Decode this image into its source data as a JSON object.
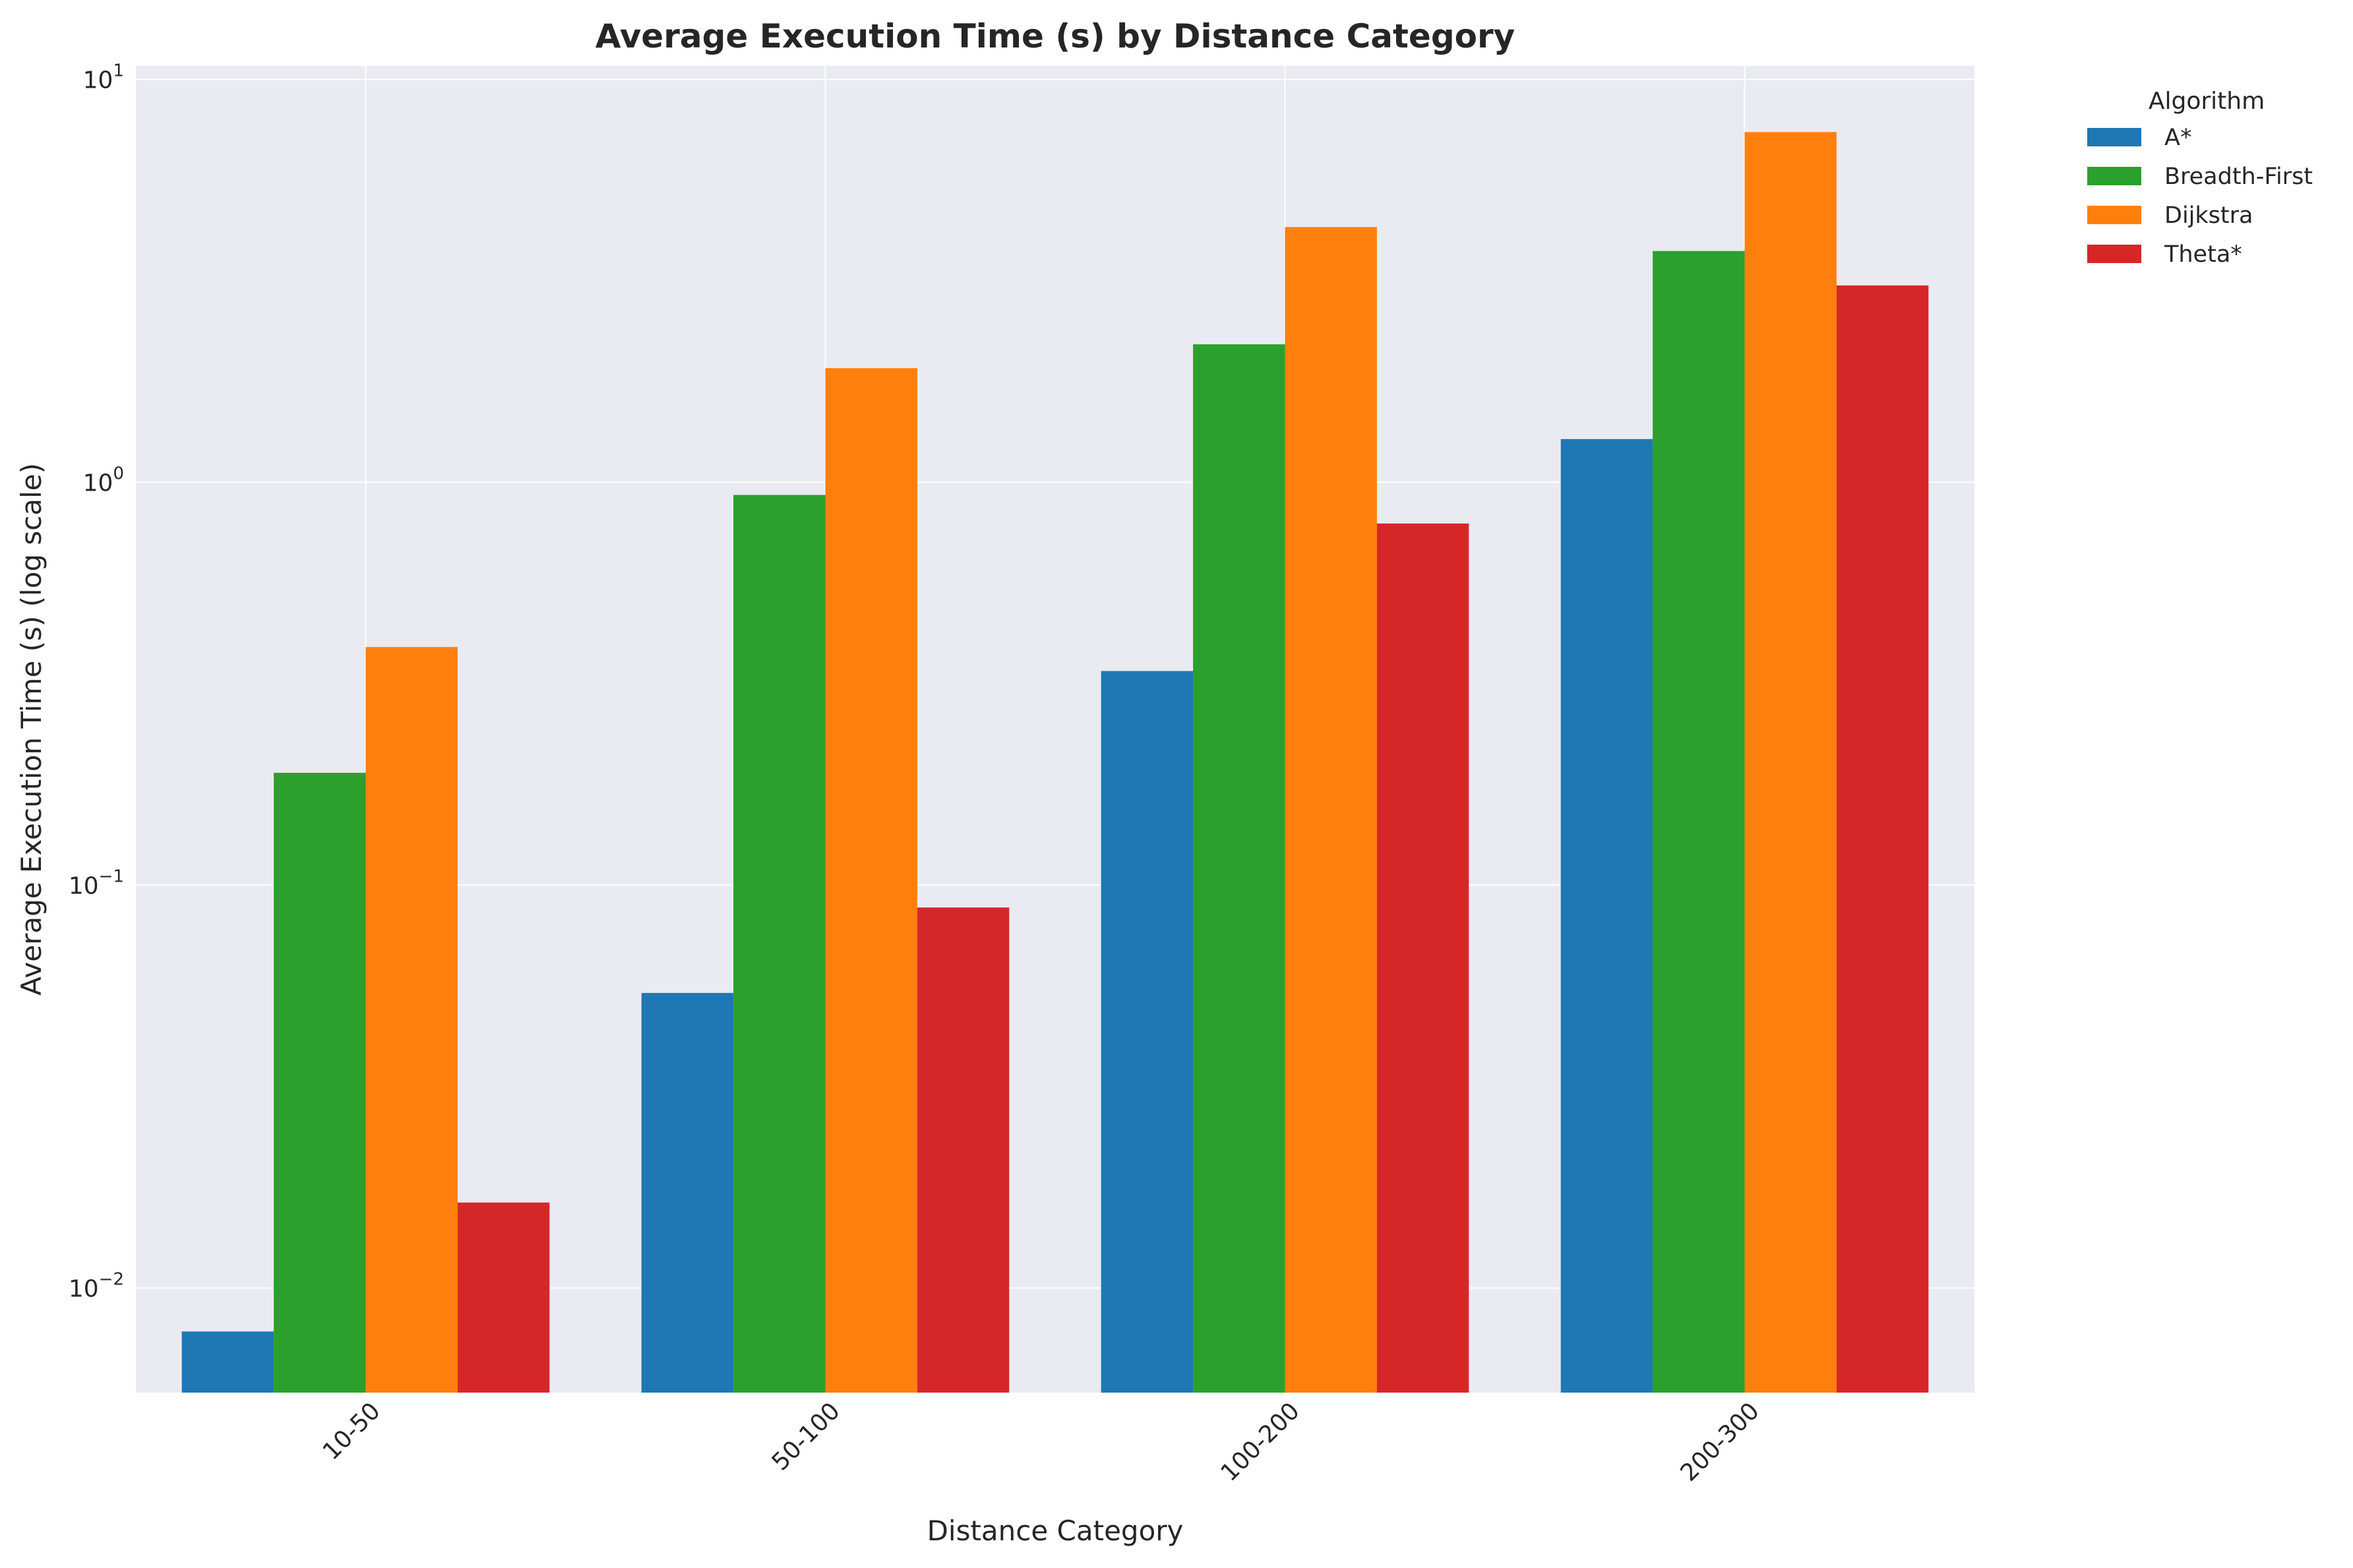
{
  "chart_data": {
    "type": "bar",
    "title": "Average Execution Time (s) by Distance Category",
    "xlabel": "Distance Category",
    "ylabel": "Average Execution Time (s) (log scale)",
    "yscale": "log",
    "ylim": [
      0.0055,
      10.8
    ],
    "yticks": [
      0.01,
      0.1,
      1,
      10
    ],
    "ytick_labels": [
      {
        "base": "10",
        "exp": "−2"
      },
      {
        "base": "10",
        "exp": "−1"
      },
      {
        "base": "10",
        "exp": "0"
      },
      {
        "base": "10",
        "exp": "1"
      }
    ],
    "categories": [
      "10-50",
      "50-100",
      "100-200",
      "200-300"
    ],
    "grid": true,
    "legend_position": "outside-top-right",
    "legend_title": "Algorithm",
    "series": [
      {
        "name": "A*",
        "color": "#1f77b4",
        "values": [
          0.0078,
          0.054,
          0.34,
          1.28
        ]
      },
      {
        "name": "Breadth-First",
        "color": "#2ca02c",
        "values": [
          0.19,
          0.93,
          2.2,
          3.75
        ]
      },
      {
        "name": "Dijkstra",
        "color": "#ff7f0e",
        "values": [
          0.39,
          1.92,
          4.3,
          7.4
        ]
      },
      {
        "name": "Theta*",
        "color": "#d62728",
        "values": [
          0.0163,
          0.088,
          0.79,
          3.08
        ]
      }
    ]
  },
  "colors": {
    "plot_background": "#eaeaf2",
    "grid": "#ffffff",
    "text": "#262626"
  }
}
